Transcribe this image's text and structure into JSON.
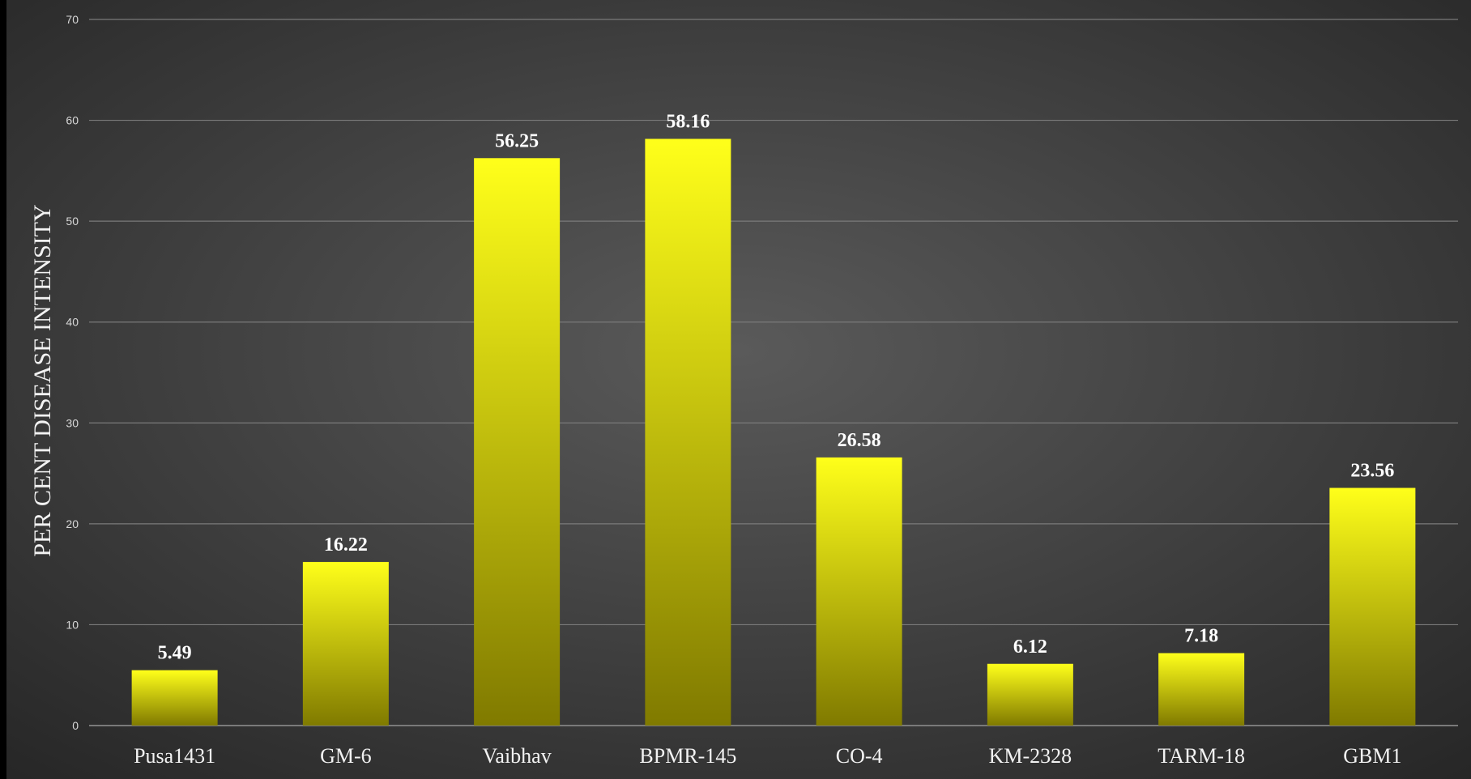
{
  "chart_data": {
    "type": "bar",
    "categories": [
      "Pusa1431",
      "GM-6",
      "Vaibhav",
      "BPMR-145",
      "CO-4",
      "KM-2328",
      "TARM-18",
      "GBM1"
    ],
    "values": [
      5.49,
      16.22,
      56.25,
      58.16,
      26.58,
      6.12,
      7.18,
      23.56
    ],
    "value_labels": [
      "5.49",
      "16.22",
      "56.25",
      "58.16",
      "26.58",
      "6.12",
      "7.18",
      "23.56"
    ],
    "title": "",
    "xlabel": "",
    "ylabel": "PER CENT DISEASE INTENSITY",
    "ylim": [
      0,
      70
    ],
    "yticks": [
      0,
      10,
      20,
      30,
      40,
      50,
      60,
      70
    ],
    "grid": true,
    "legend": "none",
    "colors": {
      "bar_top": "#ffff1a",
      "bar_bottom": "#807a00",
      "background_center": "#5a5a5a",
      "background_edge": "#262626",
      "gridline": "#7a7a7a"
    }
  }
}
